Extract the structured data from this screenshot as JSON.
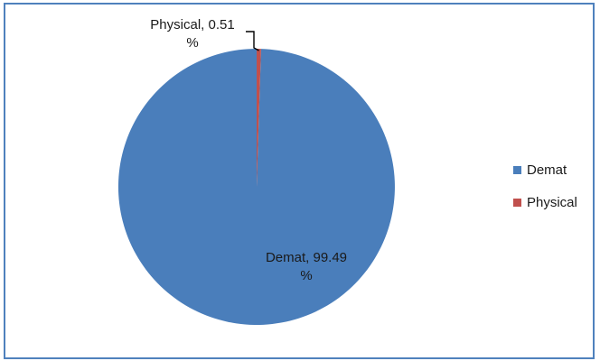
{
  "chart_data": {
    "type": "pie",
    "categories": [
      "Demat",
      "Physical"
    ],
    "values": [
      99.49,
      0.51
    ],
    "colors": [
      "#4a7ebb",
      "#c0504d"
    ],
    "data_labels": [
      {
        "line1": "Demat, 99.49",
        "line2": "%"
      },
      {
        "line1": "Physical, 0.51",
        "line2": "%"
      }
    ],
    "legend": {
      "placement": "right",
      "entries": [
        "Demat",
        "Physical"
      ]
    },
    "start_angle_deg": 0,
    "direction": "clockwise"
  }
}
